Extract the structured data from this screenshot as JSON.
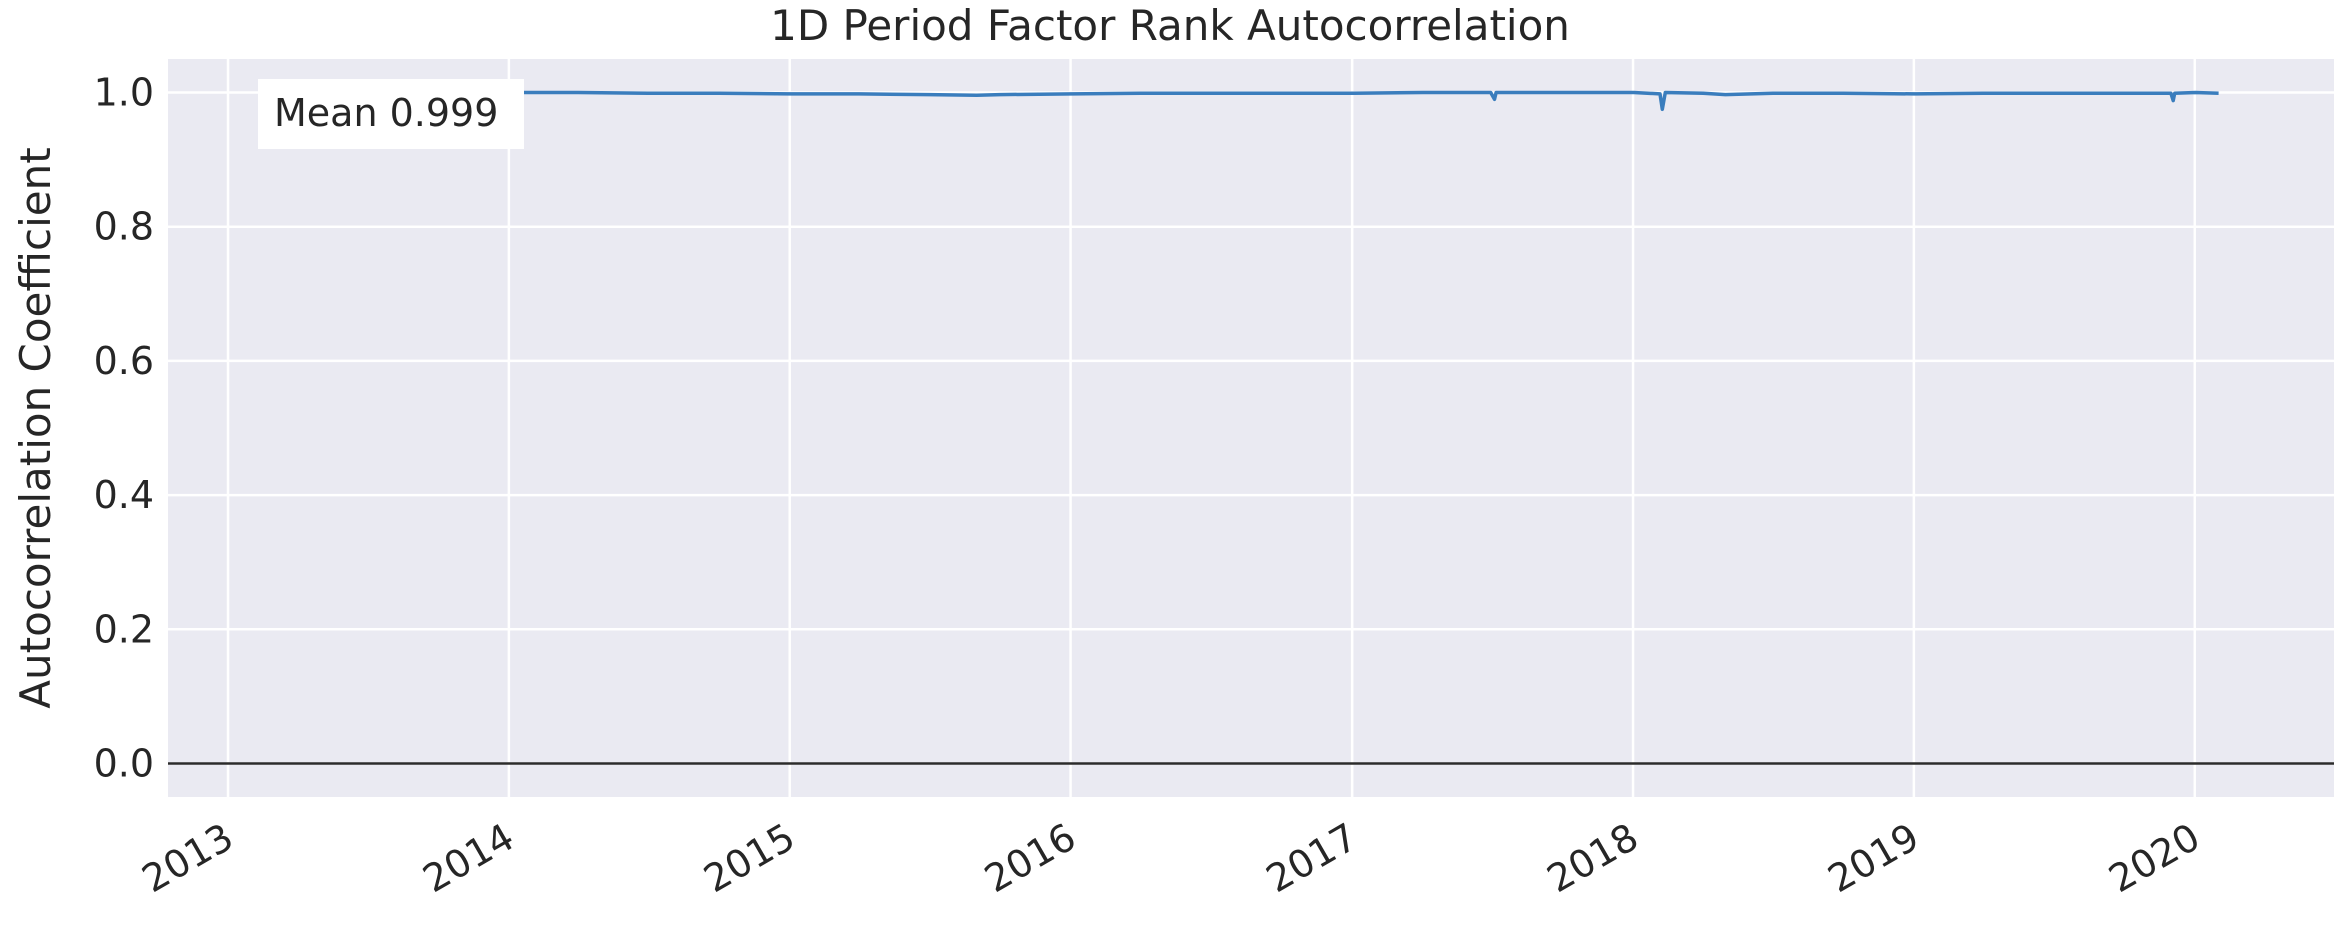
{
  "chart_data": {
    "type": "line",
    "title": "1D Period Factor Rank Autocorrelation",
    "ylabel": "Autocorrelation Coefficient",
    "xlabel": "",
    "xlim": [
      "2012-10-15",
      "2020-06-30"
    ],
    "ylim": [
      -0.05,
      1.05
    ],
    "x_ticks": [
      "2013",
      "2014",
      "2015",
      "2016",
      "2017",
      "2018",
      "2019",
      "2020"
    ],
    "y_ticks": [
      "0.0",
      "0.2",
      "0.4",
      "0.6",
      "0.8",
      "1.0"
    ],
    "y_tick_values": [
      0.0,
      0.2,
      0.4,
      0.6,
      0.8,
      1.0
    ],
    "grid": true,
    "zero_line": 0.0,
    "annotation": "Mean 0.999",
    "series": [
      {
        "color": "#3a7dbd",
        "x": [
          "2014-01-02",
          "2014-04-01",
          "2014-07-01",
          "2014-10-01",
          "2015-01-02",
          "2015-04-01",
          "2015-07-01",
          "2015-09-01",
          "2015-10-01",
          "2016-01-04",
          "2016-04-01",
          "2016-07-01",
          "2016-10-03",
          "2017-01-03",
          "2017-04-03",
          "2017-06-30",
          "2017-07-05",
          "2017-07-07",
          "2017-10-02",
          "2018-01-02",
          "2018-02-05",
          "2018-02-08",
          "2018-02-12",
          "2018-04-02",
          "2018-05-01",
          "2018-07-02",
          "2018-10-01",
          "2019-01-02",
          "2019-04-01",
          "2019-07-01",
          "2019-10-01",
          "2019-12-01",
          "2019-12-04",
          "2019-12-06",
          "2020-01-02",
          "2020-02-01"
        ],
        "values": [
          1.0,
          1.0,
          0.999,
          0.999,
          0.998,
          0.998,
          0.997,
          0.996,
          0.997,
          0.998,
          0.999,
          0.999,
          0.999,
          0.999,
          1.0,
          1.0,
          0.99,
          1.0,
          1.0,
          1.0,
          0.998,
          0.975,
          1.0,
          0.999,
          0.997,
          0.999,
          0.999,
          0.998,
          0.999,
          0.999,
          0.999,
          0.999,
          0.988,
          0.999,
          1.0,
          0.999
        ]
      }
    ]
  }
}
